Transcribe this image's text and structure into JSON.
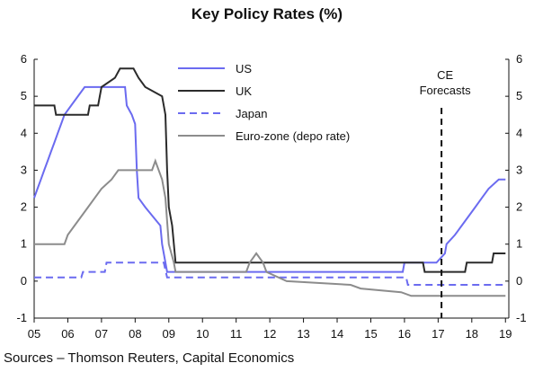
{
  "chart_data": {
    "type": "line",
    "title": "Key Policy Rates (%)",
    "source": "Sources – Thomson Reuters, Capital Economics",
    "annotation": {
      "text_line1": "CE",
      "text_line2": "Forecasts",
      "x": 2017.1
    },
    "x_ticks": [
      "05",
      "06",
      "07",
      "08",
      "09",
      "10",
      "11",
      "12",
      "13",
      "14",
      "15",
      "16",
      "17",
      "18",
      "19"
    ],
    "y_ticks": [
      -1,
      0,
      1,
      2,
      3,
      4,
      5,
      6
    ],
    "xlim": [
      2005,
      2019.1
    ],
    "ylim": [
      -1,
      6
    ],
    "dual_y_axis": true,
    "grid": false,
    "legend_position": "top-center",
    "series": [
      {
        "name": "US",
        "color": "#6b6bf0",
        "dash": "solid",
        "points": [
          [
            2005.0,
            2.25
          ],
          [
            2005.1,
            2.5
          ],
          [
            2005.2,
            2.75
          ],
          [
            2005.3,
            3.0
          ],
          [
            2005.4,
            3.25
          ],
          [
            2005.5,
            3.5
          ],
          [
            2005.6,
            3.75
          ],
          [
            2005.7,
            4.0
          ],
          [
            2005.8,
            4.25
          ],
          [
            2005.9,
            4.5
          ],
          [
            2006.1,
            4.75
          ],
          [
            2006.3,
            5.0
          ],
          [
            2006.5,
            5.25
          ],
          [
            2007.7,
            5.25
          ],
          [
            2007.75,
            4.75
          ],
          [
            2007.9,
            4.5
          ],
          [
            2008.0,
            4.25
          ],
          [
            2008.05,
            3.0
          ],
          [
            2008.1,
            2.25
          ],
          [
            2008.3,
            2.0
          ],
          [
            2008.75,
            1.5
          ],
          [
            2008.8,
            1.0
          ],
          [
            2008.95,
            0.25
          ],
          [
            2015.95,
            0.25
          ],
          [
            2016.0,
            0.5
          ],
          [
            2016.95,
            0.5
          ],
          [
            2017.2,
            0.75
          ],
          [
            2017.25,
            1.0
          ],
          [
            2017.5,
            1.25
          ],
          [
            2017.7,
            1.5
          ],
          [
            2017.9,
            1.75
          ],
          [
            2018.1,
            2.0
          ],
          [
            2018.3,
            2.25
          ],
          [
            2018.5,
            2.5
          ],
          [
            2018.8,
            2.75
          ],
          [
            2019.0,
            2.75
          ]
        ]
      },
      {
        "name": "UK",
        "color": "#2b2b2b",
        "dash": "solid",
        "points": [
          [
            2005.0,
            4.75
          ],
          [
            2005.6,
            4.75
          ],
          [
            2005.65,
            4.5
          ],
          [
            2006.6,
            4.5
          ],
          [
            2006.65,
            4.75
          ],
          [
            2006.9,
            4.75
          ],
          [
            2006.95,
            5.0
          ],
          [
            2007.0,
            5.25
          ],
          [
            2007.4,
            5.5
          ],
          [
            2007.55,
            5.75
          ],
          [
            2007.95,
            5.75
          ],
          [
            2008.1,
            5.5
          ],
          [
            2008.3,
            5.25
          ],
          [
            2008.8,
            5.0
          ],
          [
            2008.9,
            4.5
          ],
          [
            2008.95,
            3.0
          ],
          [
            2009.0,
            2.0
          ],
          [
            2009.1,
            1.5
          ],
          [
            2009.15,
            1.0
          ],
          [
            2009.2,
            0.5
          ],
          [
            2016.55,
            0.5
          ],
          [
            2016.6,
            0.25
          ],
          [
            2017.8,
            0.25
          ],
          [
            2017.85,
            0.5
          ],
          [
            2018.6,
            0.5
          ],
          [
            2018.65,
            0.75
          ],
          [
            2019.0,
            0.75
          ]
        ]
      },
      {
        "name": "Japan",
        "color": "#6b6bf0",
        "dash": "dashed",
        "points": [
          [
            2005.0,
            0.1
          ],
          [
            2006.4,
            0.1
          ],
          [
            2006.45,
            0.25
          ],
          [
            2007.1,
            0.25
          ],
          [
            2007.15,
            0.5
          ],
          [
            2008.85,
            0.5
          ],
          [
            2008.9,
            0.3
          ],
          [
            2008.95,
            0.1
          ],
          [
            2016.05,
            0.1
          ],
          [
            2016.1,
            -0.1
          ],
          [
            2019.0,
            -0.1
          ]
        ]
      },
      {
        "name": "Euro-zone (depo rate)",
        "color": "#8c8c8c",
        "dash": "solid",
        "points": [
          [
            2005.0,
            1.0
          ],
          [
            2005.9,
            1.0
          ],
          [
            2006.0,
            1.25
          ],
          [
            2006.2,
            1.5
          ],
          [
            2006.4,
            1.75
          ],
          [
            2006.6,
            2.0
          ],
          [
            2006.8,
            2.25
          ],
          [
            2007.0,
            2.5
          ],
          [
            2007.3,
            2.75
          ],
          [
            2007.5,
            3.0
          ],
          [
            2008.5,
            3.0
          ],
          [
            2008.6,
            3.25
          ],
          [
            2008.8,
            2.75
          ],
          [
            2008.9,
            2.25
          ],
          [
            2009.0,
            1.0
          ],
          [
            2009.15,
            0.5
          ],
          [
            2009.2,
            0.25
          ],
          [
            2011.3,
            0.25
          ],
          [
            2011.4,
            0.5
          ],
          [
            2011.6,
            0.75
          ],
          [
            2011.8,
            0.5
          ],
          [
            2011.9,
            0.25
          ],
          [
            2012.5,
            0.0
          ],
          [
            2014.4,
            -0.1
          ],
          [
            2014.7,
            -0.2
          ],
          [
            2015.9,
            -0.3
          ],
          [
            2016.2,
            -0.4
          ],
          [
            2019.0,
            -0.4
          ]
        ]
      }
    ]
  }
}
